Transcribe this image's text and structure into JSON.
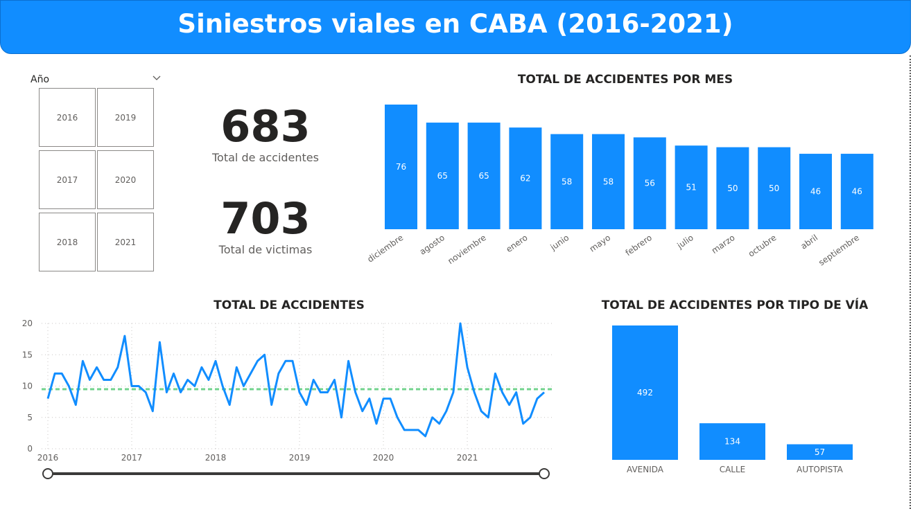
{
  "header": {
    "title": "Siniestros viales en CABA (2016-2021)"
  },
  "slicer": {
    "label": "Año",
    "years": [
      "2016",
      "2019",
      "2017",
      "2020",
      "2018",
      "2021"
    ]
  },
  "kpis": {
    "accidents": {
      "value": "683",
      "label": "Total de accidentes"
    },
    "victims": {
      "value": "703",
      "label": "Total de victimas"
    }
  },
  "colors": {
    "bar": "#118dff",
    "line": "#118dff",
    "average": "#72d38d",
    "grid": "#c8c6c4"
  },
  "chart_data": [
    {
      "type": "bar",
      "title": "TOTAL DE ACCIDENTES POR MES",
      "categories": [
        "diciembre",
        "agosto",
        "noviembre",
        "enero",
        "junio",
        "mayo",
        "febrero",
        "julio",
        "marzo",
        "octubre",
        "abril",
        "septiembre"
      ],
      "values": [
        76,
        65,
        65,
        62,
        58,
        58,
        56,
        51,
        50,
        50,
        46,
        46
      ],
      "ylim": [
        0,
        76
      ],
      "grid": false
    },
    {
      "type": "line",
      "title": "TOTAL DE ACCIDENTES",
      "x_start": "2016-01",
      "x_ticks": [
        "2016",
        "2017",
        "2018",
        "2019",
        "2020",
        "2021"
      ],
      "y_ticks": [
        "0",
        "5",
        "10",
        "15",
        "20"
      ],
      "ylim": [
        0,
        20
      ],
      "grid": true,
      "average": 9.5,
      "values": [
        8,
        12,
        12,
        10,
        7,
        14,
        11,
        13,
        11,
        11,
        13,
        18,
        10,
        10,
        9,
        6,
        17,
        9,
        12,
        9,
        11,
        10,
        13,
        11,
        14,
        10,
        7,
        13,
        10,
        12,
        14,
        15,
        7,
        12,
        14,
        14,
        9,
        7,
        11,
        9,
        9,
        11,
        5,
        14,
        9,
        6,
        8,
        4,
        8,
        8,
        5,
        3,
        3,
        3,
        2,
        5,
        4,
        6,
        9,
        20,
        13,
        9,
        6,
        5,
        12,
        9,
        7,
        9,
        4,
        5,
        8,
        9
      ]
    },
    {
      "type": "bar",
      "title": "TOTAL DE ACCIDENTES POR TIPO DE VÍA",
      "categories": [
        "AVENIDA",
        "CALLE",
        "AUTOPISTA"
      ],
      "values": [
        492,
        134,
        57
      ],
      "ylim": [
        0,
        492
      ],
      "grid": false
    }
  ]
}
